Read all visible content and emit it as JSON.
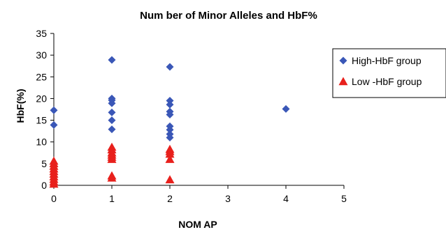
{
  "chart_data": {
    "type": "scatter",
    "title": "Num ber of Minor Alleles and HbF%",
    "xlabel": "NOM AP",
    "ylabel": "HbF(%)",
    "xlim": [
      0,
      5
    ],
    "ylim": [
      0,
      35
    ],
    "x_ticks": [
      "0",
      "1",
      "2",
      "3",
      "4",
      "5"
    ],
    "y_ticks": [
      "0",
      "5",
      "10",
      "15",
      "20",
      "25",
      "30",
      "35"
    ],
    "grid": false,
    "legend_position": "right",
    "series": [
      {
        "name": "High-HbF group",
        "marker": "diamond",
        "color": "#3a57b7",
        "points": [
          [
            0,
            17.3
          ],
          [
            0,
            13.9
          ],
          [
            1,
            28.9
          ],
          [
            1,
            20.0
          ],
          [
            1,
            19.6
          ],
          [
            1,
            18.9
          ],
          [
            1,
            16.8
          ],
          [
            1,
            15.0
          ],
          [
            1,
            12.9
          ],
          [
            2,
            27.3
          ],
          [
            2,
            19.5
          ],
          [
            2,
            18.6
          ],
          [
            2,
            17.0
          ],
          [
            2,
            16.3
          ],
          [
            2,
            13.6
          ],
          [
            2,
            12.8
          ],
          [
            2,
            11.8
          ],
          [
            2,
            11.0
          ],
          [
            4,
            17.6
          ]
        ]
      },
      {
        "name": "Low -HbF group",
        "marker": "triangle",
        "color": "#e8201c",
        "points": [
          [
            0,
            5.6
          ],
          [
            0,
            5.0
          ],
          [
            0,
            4.4
          ],
          [
            0,
            3.8
          ],
          [
            0,
            3.2
          ],
          [
            0,
            2.6
          ],
          [
            0,
            2.0
          ],
          [
            0,
            1.4
          ],
          [
            0,
            0.8
          ],
          [
            0,
            0.3
          ],
          [
            1,
            8.8
          ],
          [
            1,
            8.2
          ],
          [
            1,
            7.5
          ],
          [
            1,
            7.0
          ],
          [
            1,
            6.5
          ],
          [
            1,
            6.0
          ],
          [
            1,
            2.2
          ],
          [
            1,
            1.7
          ],
          [
            2,
            8.3
          ],
          [
            2,
            7.8
          ],
          [
            2,
            7.2
          ],
          [
            2,
            6.0
          ],
          [
            2,
            1.3
          ]
        ]
      }
    ]
  }
}
